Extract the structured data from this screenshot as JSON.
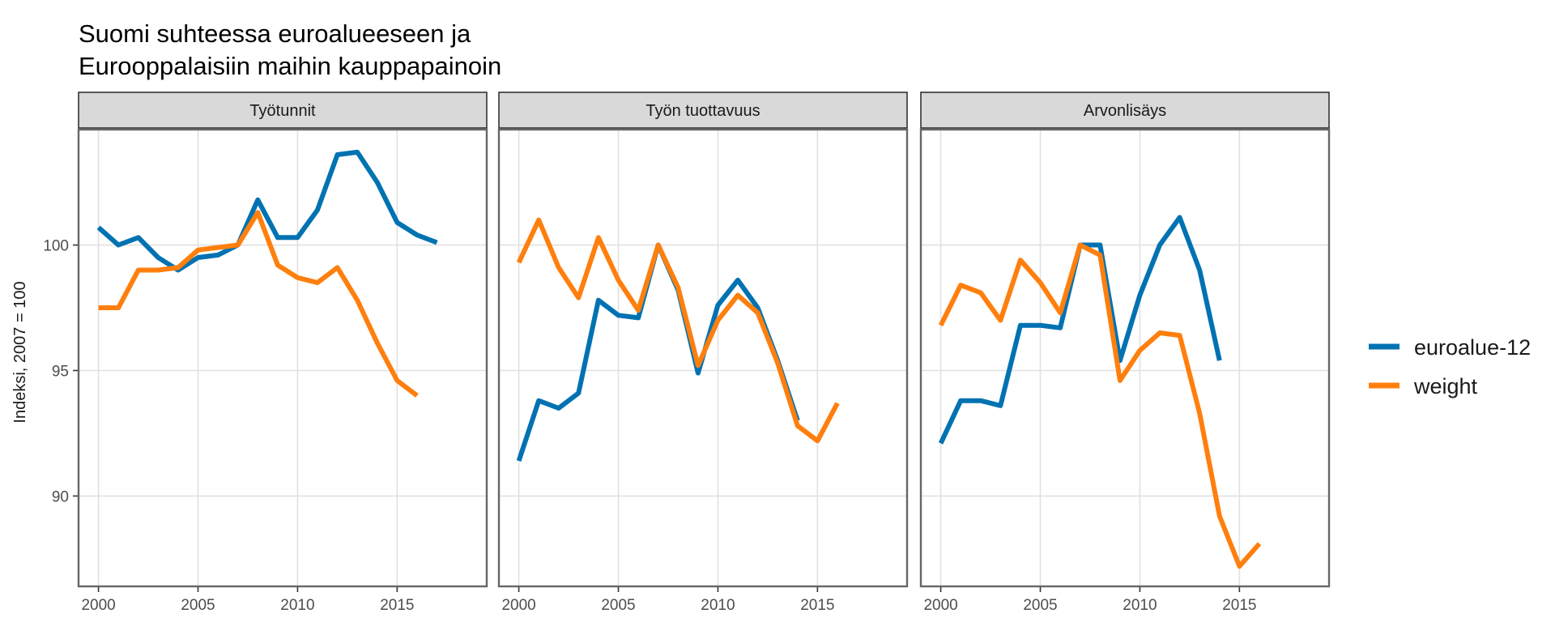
{
  "chart_data": {
    "type": "line",
    "title_lines": [
      "Suomi suhteessa euroalueeseen ja",
      "Eurooppalaisiin maihin kauppapainoin"
    ],
    "ylabel": "Indeksi, 2007 = 100",
    "xlim": [
      1999,
      2019.5
    ],
    "ylim": [
      86.4,
      104.6
    ],
    "x_ticks": [
      2000,
      2005,
      2010,
      2015
    ],
    "y_ticks": [
      90,
      95,
      100
    ],
    "grid": true,
    "legend_position": "right",
    "series_meta": [
      {
        "name": "euroalue-12",
        "color": "#0072B2"
      },
      {
        "name": "weight",
        "color": "#FF7F0E"
      }
    ],
    "panels": [
      {
        "title": "Työtunnit",
        "series": [
          {
            "name": "euroalue-12",
            "x": [
              2000,
              2001,
              2002,
              2003,
              2004,
              2005,
              2006,
              2007,
              2008,
              2009,
              2010,
              2011,
              2012,
              2013,
              2014,
              2015,
              2016,
              2017
            ],
            "values": [
              100.7,
              100.0,
              100.3,
              99.5,
              99.0,
              99.5,
              99.6,
              100.0,
              101.8,
              100.3,
              100.3,
              101.4,
              103.6,
              103.7,
              102.5,
              100.9,
              100.4,
              100.1
            ]
          },
          {
            "name": "weight",
            "x": [
              2000,
              2001,
              2002,
              2003,
              2004,
              2005,
              2006,
              2007,
              2008,
              2009,
              2010,
              2011,
              2012,
              2013,
              2014,
              2015,
              2016
            ],
            "values": [
              97.5,
              97.5,
              99.0,
              99.0,
              99.1,
              99.8,
              99.9,
              100.0,
              101.3,
              99.2,
              98.7,
              98.5,
              99.1,
              97.8,
              96.1,
              94.6,
              94.0
            ]
          }
        ]
      },
      {
        "title": "Työn tuottavuus",
        "series": [
          {
            "name": "euroalue-12",
            "x": [
              2000,
              2001,
              2002,
              2003,
              2004,
              2005,
              2006,
              2007,
              2008,
              2009,
              2010,
              2011,
              2012,
              2013,
              2014
            ],
            "values": [
              91.4,
              93.8,
              93.5,
              94.1,
              97.8,
              97.2,
              97.1,
              100.0,
              98.2,
              94.9,
              97.6,
              98.6,
              97.5,
              95.4,
              93.0
            ]
          },
          {
            "name": "weight",
            "x": [
              2000,
              2001,
              2002,
              2003,
              2004,
              2005,
              2006,
              2007,
              2008,
              2009,
              2010,
              2011,
              2012,
              2013,
              2014,
              2015,
              2016
            ],
            "values": [
              99.3,
              101.0,
              99.1,
              97.9,
              100.3,
              98.6,
              97.4,
              100.0,
              98.3,
              95.2,
              97.0,
              98.0,
              97.3,
              95.3,
              92.8,
              92.2,
              93.7
            ]
          }
        ]
      },
      {
        "title": "Arvonlisäys",
        "series": [
          {
            "name": "euroalue-12",
            "x": [
              2000,
              2001,
              2002,
              2003,
              2004,
              2005,
              2006,
              2007,
              2008,
              2009,
              2010,
              2011,
              2012,
              2013,
              2014
            ],
            "values": [
              92.1,
              93.8,
              93.8,
              93.6,
              96.8,
              96.8,
              96.7,
              100.0,
              100.0,
              95.4,
              98.0,
              100.0,
              101.1,
              99.0,
              95.4
            ]
          },
          {
            "name": "weight",
            "x": [
              2000,
              2001,
              2002,
              2003,
              2004,
              2005,
              2006,
              2007,
              2008,
              2009,
              2010,
              2011,
              2012,
              2013,
              2014,
              2015,
              2016
            ],
            "values": [
              96.8,
              98.4,
              98.1,
              97.0,
              99.4,
              98.5,
              97.3,
              100.0,
              99.6,
              94.6,
              95.8,
              96.5,
              96.4,
              93.3,
              89.2,
              87.2,
              88.1
            ]
          }
        ]
      }
    ]
  }
}
